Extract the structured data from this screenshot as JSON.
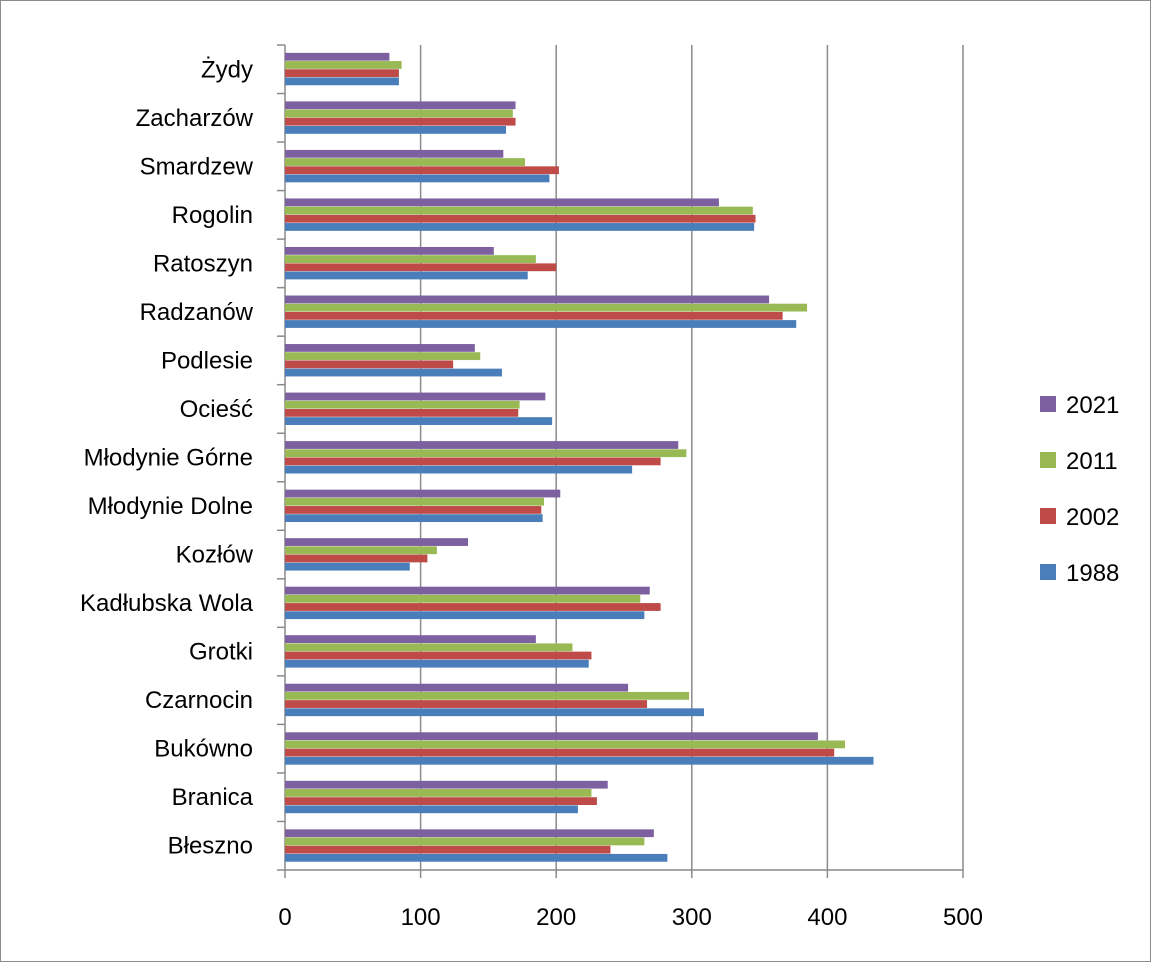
{
  "chart_data": {
    "type": "bar",
    "orientation": "horizontal",
    "categories": [
      "Błeszno",
      "Branica",
      "Bukówno",
      "Czarnocin",
      "Grotki",
      "Kadłubska Wola",
      "Kozłów",
      "Młodynie Dolne",
      "Młodynie Górne",
      "Ocieść",
      "Podlesie",
      "Radzanów",
      "Ratoszyn",
      "Rogolin",
      "Smardzew",
      "Zacharzów",
      "Żydy"
    ],
    "series": [
      {
        "name": "1988",
        "color": "#4a7ebb",
        "values": [
          282,
          216,
          434,
          309,
          224,
          265,
          92,
          190,
          256,
          197,
          160,
          377,
          179,
          346,
          195,
          163,
          84
        ]
      },
      {
        "name": "2002",
        "color": "#be4b48",
        "values": [
          240,
          230,
          405,
          267,
          226,
          277,
          105,
          189,
          277,
          172,
          124,
          367,
          200,
          347,
          202,
          170,
          84
        ]
      },
      {
        "name": "2011",
        "color": "#98b954",
        "values": [
          265,
          226,
          413,
          298,
          212,
          262,
          112,
          191,
          296,
          173,
          144,
          385,
          185,
          345,
          177,
          168,
          86
        ]
      },
      {
        "name": "2021",
        "color": "#7d60a0",
        "values": [
          272,
          238,
          393,
          253,
          185,
          269,
          135,
          203,
          290,
          192,
          140,
          357,
          154,
          320,
          161,
          170,
          77
        ]
      }
    ],
    "xlim": [
      0,
      500
    ],
    "xticks": [
      "0",
      "100",
      "200",
      "300",
      "400",
      "500"
    ],
    "grid": "vertical",
    "legend": "right",
    "legend_order": [
      "2021",
      "2011",
      "2002",
      "1988"
    ],
    "title": "",
    "xlabel": "",
    "ylabel": ""
  }
}
